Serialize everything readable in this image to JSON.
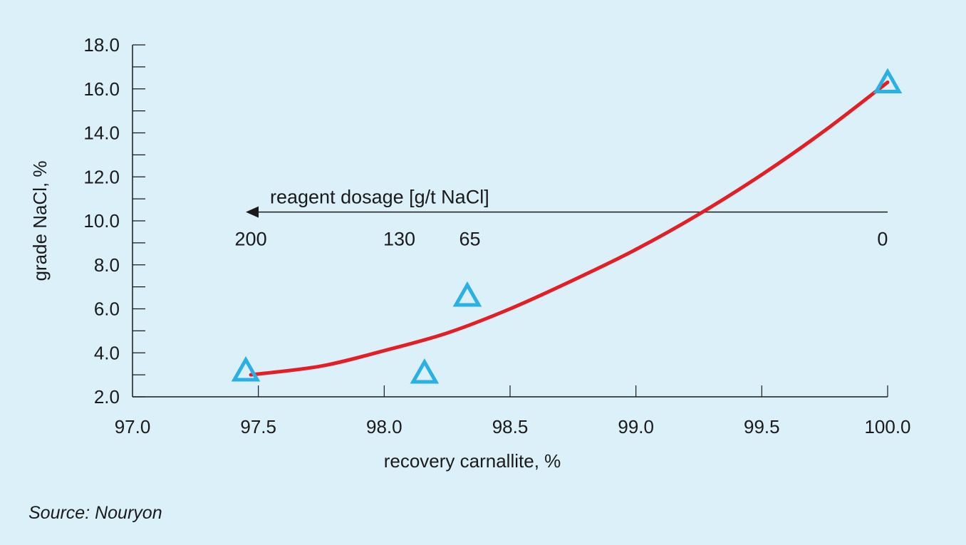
{
  "chart_data": {
    "type": "scatter",
    "xlabel": "recovery carnallite, %",
    "ylabel": "grade NaCl, %",
    "xlim": [
      97.0,
      100.0
    ],
    "ylim": [
      2.0,
      18.0
    ],
    "x_ticks": [
      "97.0",
      "97.5",
      "98.0",
      "98.5",
      "99.0",
      "99.5",
      "100.0"
    ],
    "y_ticks": [
      "2.0",
      "4.0",
      "6.0",
      "8.0",
      "10.0",
      "12.0",
      "14.0",
      "16.0",
      "18.0"
    ],
    "series": [
      {
        "type": "scatter",
        "marker": "triangle-outline",
        "color": "#29b0e6",
        "x": [
          97.45,
          98.16,
          98.33,
          100.0
        ],
        "y": [
          3.2,
          3.1,
          6.6,
          16.3
        ]
      },
      {
        "type": "line",
        "color": "#e31e24",
        "x": [
          97.47,
          97.75,
          98.0,
          98.25,
          98.5,
          98.75,
          99.0,
          99.25,
          99.5,
          99.75,
          100.0
        ],
        "y": [
          3.0,
          3.4,
          4.1,
          4.9,
          6.0,
          7.3,
          8.7,
          10.3,
          12.1,
          14.1,
          16.3
        ]
      }
    ],
    "annotation": {
      "text": "reagent dosage [g/t NaCl]",
      "arrow": {
        "from_x": 100.0,
        "to_x": 97.45,
        "y": 10.4,
        "direction": "left"
      },
      "dosage_labels": [
        {
          "text": "200",
          "x": 97.47
        },
        {
          "text": "130",
          "x": 98.06
        },
        {
          "text": "65",
          "x": 98.34
        },
        {
          "text": "0",
          "x": 99.98
        }
      ]
    },
    "grid": false,
    "background": "#dcf0fa",
    "axis_color": "#1a1a1a"
  },
  "source": "Source: Nouryon"
}
